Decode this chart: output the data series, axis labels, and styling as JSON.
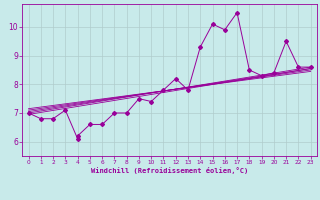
{
  "xlabel": "Windchill (Refroidissement éolien,°C)",
  "bg_color": "#c8eaea",
  "line_color": "#990099",
  "grid_color": "#b0cccc",
  "x_data": [
    0,
    1,
    2,
    3,
    4,
    4,
    5,
    6,
    7,
    8,
    9,
    10,
    11,
    12,
    13,
    14,
    15,
    16,
    17,
    18,
    19,
    20,
    21,
    22,
    23
  ],
  "y_data": [
    7.0,
    6.8,
    6.8,
    7.1,
    6.1,
    6.2,
    6.6,
    6.6,
    7.0,
    7.0,
    7.5,
    7.4,
    7.8,
    8.2,
    7.8,
    9.3,
    10.1,
    9.9,
    10.5,
    8.5,
    8.3,
    8.4,
    9.5,
    8.6,
    8.6
  ],
  "xlim": [
    -0.5,
    23.5
  ],
  "ylim": [
    5.5,
    10.8
  ],
  "yticks": [
    6,
    7,
    8,
    9,
    10
  ],
  "xticks": [
    0,
    1,
    2,
    3,
    4,
    5,
    6,
    7,
    8,
    9,
    10,
    11,
    12,
    13,
    14,
    15,
    16,
    17,
    18,
    19,
    20,
    21,
    22,
    23
  ],
  "trend_lines": [
    {
      "x0": 0,
      "y0": 6.95,
      "x1": 23,
      "y1": 8.55
    },
    {
      "x0": 0,
      "y0": 7.0,
      "x1": 23,
      "y1": 8.6
    },
    {
      "x0": 0,
      "y0": 7.05,
      "x1": 23,
      "y1": 8.55
    },
    {
      "x0": 0,
      "y0": 7.1,
      "x1": 23,
      "y1": 8.5
    },
    {
      "x0": 0,
      "y0": 7.15,
      "x1": 23,
      "y1": 8.45
    }
  ]
}
